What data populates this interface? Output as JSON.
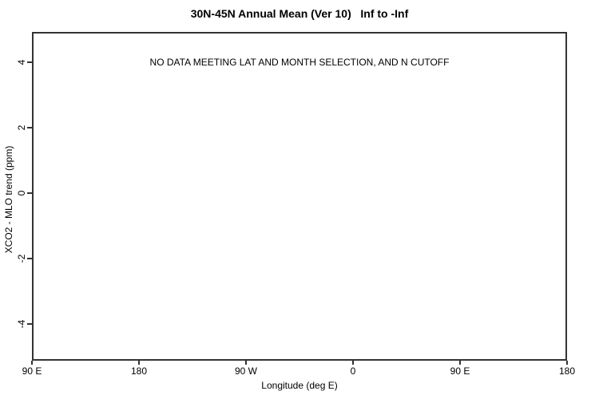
{
  "chart_data": {
    "type": "scatter",
    "title": "30N-45N Annual Mean (Ver 10)   Inf to -Inf",
    "xlabel": "Longitude (deg E)",
    "ylabel": "XCO2 - MLO trend (ppm)",
    "annotation": "NO DATA MEETING LAT AND MONTH SELECTION, AND N CUTOFF",
    "series": [],
    "x_ticks": [
      {
        "value": 90,
        "label": "90 E"
      },
      {
        "value": 180,
        "label": "180"
      },
      {
        "value": 270,
        "label": "90 W"
      },
      {
        "value": 360,
        "label": "0"
      },
      {
        "value": 450,
        "label": "90 E"
      },
      {
        "value": 540,
        "label": "180"
      }
    ],
    "y_ticks": [
      {
        "value": -4,
        "label": "-4"
      },
      {
        "value": -2,
        "label": "-2"
      },
      {
        "value": 0,
        "label": "0"
      },
      {
        "value": 2,
        "label": "2"
      },
      {
        "value": 4,
        "label": "4"
      }
    ],
    "xlim": [
      90,
      540
    ],
    "ylim": [
      -5.12,
      4.93
    ],
    "grid": false,
    "legend": false
  },
  "colors": {
    "axis": "#333333",
    "text": "#000000",
    "background": "#ffffff"
  }
}
